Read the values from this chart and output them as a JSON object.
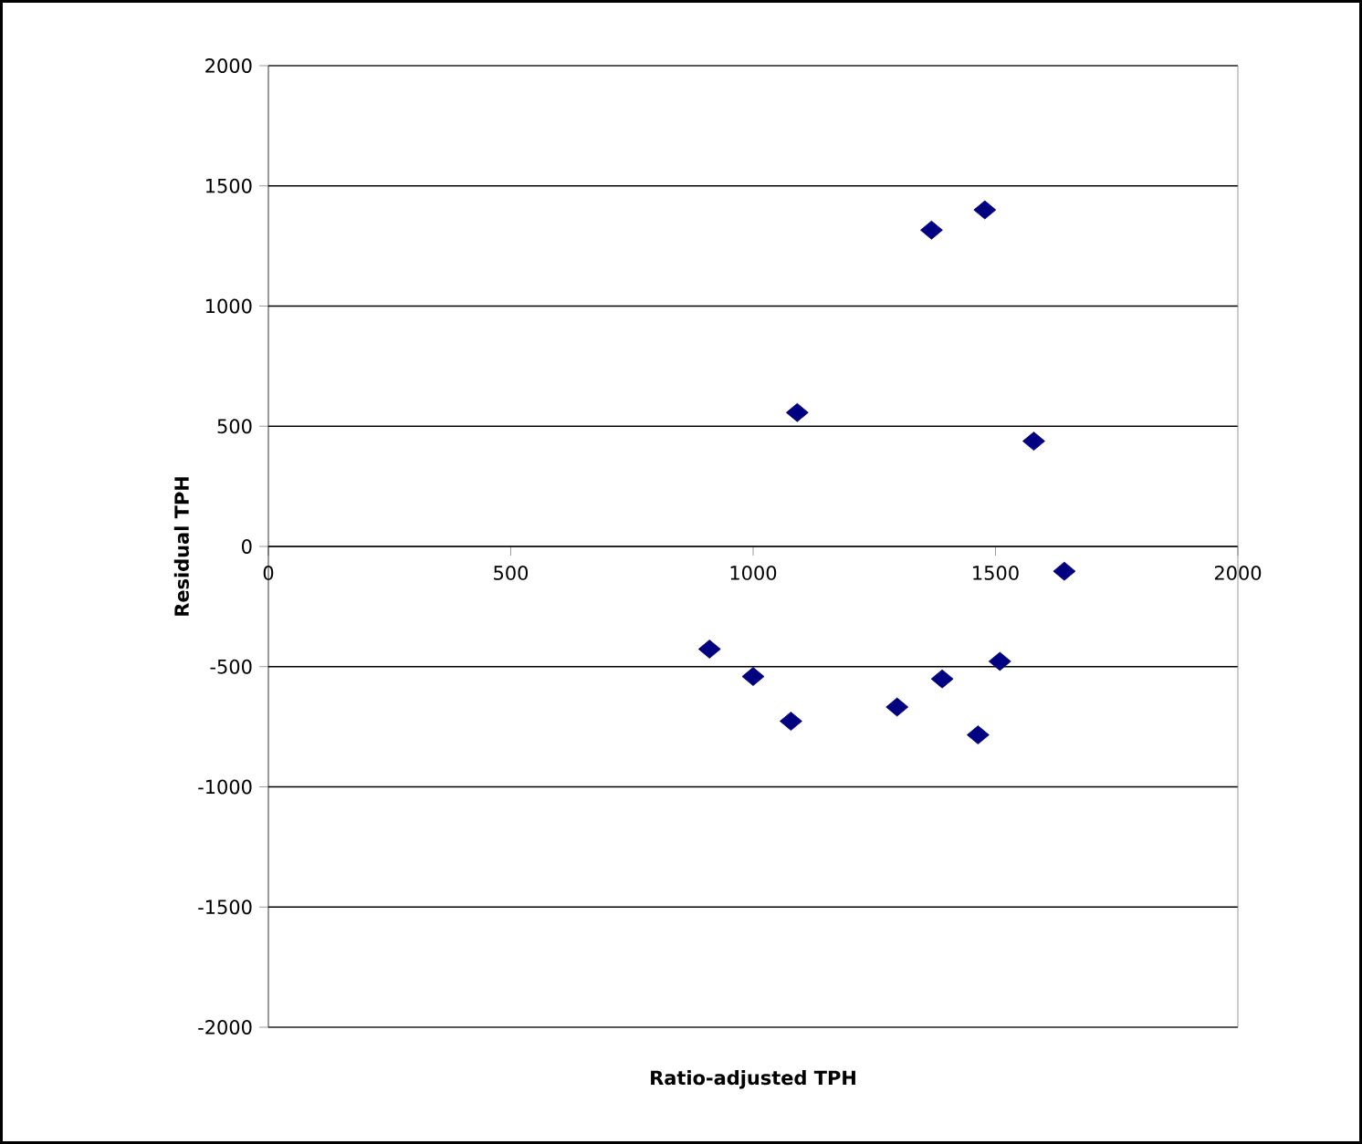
{
  "chart_data": {
    "type": "scatter",
    "xlabel": "Ratio-adjusted TPH",
    "ylabel": "Residual TPH",
    "x": [
      1091,
      1368,
      1478,
      1579,
      1642,
      910,
      1000,
      1078,
      1297,
      1390,
      1464,
      1509
    ],
    "values": [
      557,
      1316,
      1400,
      438,
      -103,
      -427,
      -541,
      -727,
      -668,
      -551,
      -784,
      -478
    ],
    "color": "#000080",
    "marker": "diamond",
    "grid": "y",
    "xlim": [
      0,
      2000
    ],
    "ylim": [
      -2000,
      2000
    ],
    "xticks": [
      0,
      500,
      1000,
      1500,
      2000
    ],
    "yticks": [
      -2000,
      -1500,
      -1000,
      -500,
      0,
      500,
      1000,
      1500,
      2000
    ]
  }
}
